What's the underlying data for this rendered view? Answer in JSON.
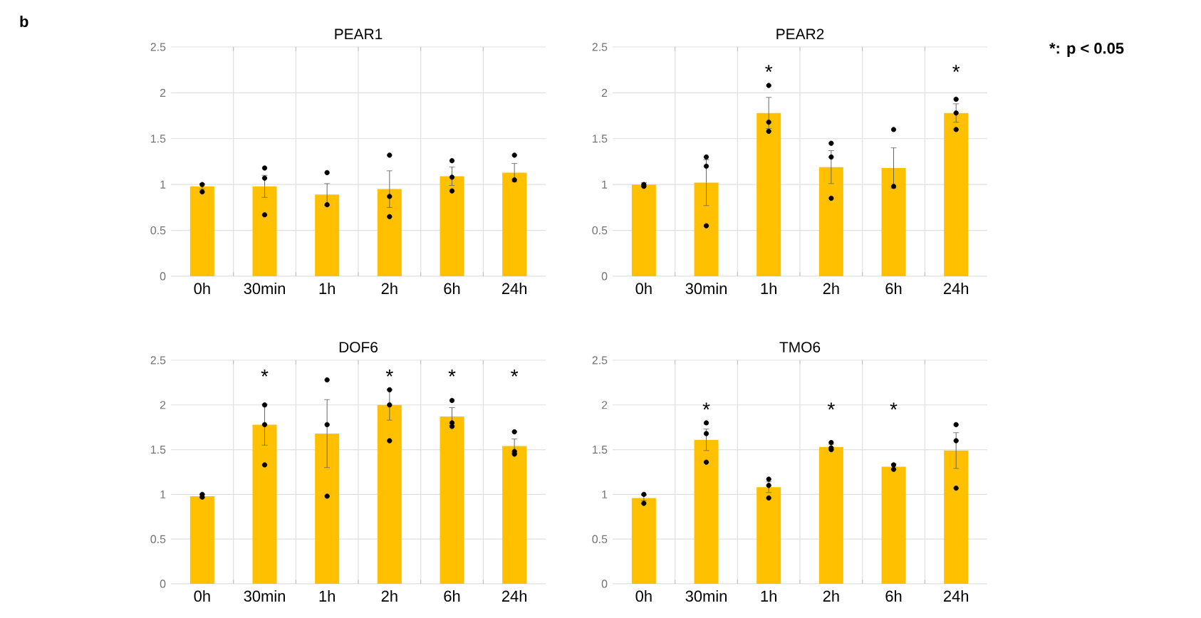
{
  "chart_data": [
    {
      "type": "bar",
      "title": "PEAR1",
      "categories": [
        "0h",
        "30min",
        "1h",
        "2h",
        "6h",
        "24h"
      ],
      "ylim": [
        0,
        2.5
      ],
      "yticks": [
        0,
        0.5,
        1,
        1.5,
        2,
        2.5
      ],
      "grid": true,
      "series": [
        {
          "color": "#ffc000",
          "values": [
            0.98,
            0.98,
            0.89,
            0.95,
            1.09,
            1.13
          ],
          "errors": [
            0.03,
            0.12,
            0.12,
            0.2,
            0.1,
            0.1
          ]
        },
        {
          "type": "scatter",
          "color": "#000000",
          "marker": "circle",
          "x": [
            "0h",
            "0h",
            "30min",
            "30min",
            "30min",
            "1h",
            "1h",
            "2h",
            "2h",
            "2h",
            "6h",
            "6h",
            "6h",
            "24h",
            "24h"
          ],
          "values": [
            1.0,
            0.92,
            1.18,
            1.07,
            0.67,
            1.13,
            0.78,
            1.32,
            0.87,
            0.65,
            1.26,
            1.08,
            0.93,
            1.32,
            1.05
          ]
        }
      ],
      "annotations": [
        "b"
      ]
    },
    {
      "type": "bar",
      "title": "PEAR2",
      "categories": [
        "0h",
        "30min",
        "1h",
        "2h",
        "6h",
        "24h"
      ],
      "ylim": [
        0,
        2.5
      ],
      "yticks": [
        0,
        0.5,
        1,
        1.5,
        2,
        2.5
      ],
      "grid": true,
      "series": [
        {
          "color": "#ffc000",
          "values": [
            1.0,
            1.02,
            1.78,
            1.19,
            1.18,
            1.78
          ],
          "errors": [
            0.02,
            0.25,
            0.17,
            0.18,
            0.22,
            0.1
          ]
        },
        {
          "type": "scatter",
          "color": "#000000",
          "marker": "circle",
          "x": [
            "0h",
            "0h",
            "30min",
            "30min",
            "30min",
            "1h",
            "1h",
            "1h",
            "2h",
            "2h",
            "2h",
            "6h",
            "6h",
            "24h",
            "24h",
            "24h"
          ],
          "values": [
            1.0,
            0.98,
            1.3,
            1.2,
            0.55,
            2.08,
            1.68,
            1.58,
            1.45,
            1.3,
            0.85,
            1.6,
            0.98,
            1.93,
            1.78,
            1.6
          ]
        }
      ],
      "annotations": [
        {
          "text": "*",
          "x": "1h",
          "y": 1.78
        },
        {
          "text": "*",
          "x": "24h",
          "y": 1.78
        },
        "*: p < 0.05"
      ]
    },
    {
      "type": "bar",
      "title": "DOF6",
      "categories": [
        "0h",
        "30min",
        "1h",
        "2h",
        "6h",
        "24h"
      ],
      "ylim": [
        0,
        2.5
      ],
      "yticks": [
        0,
        0.5,
        1,
        1.5,
        2,
        2.5
      ],
      "grid": true,
      "series": [
        {
          "color": "#ffc000",
          "values": [
            0.98,
            1.78,
            1.68,
            2.0,
            1.87,
            1.54
          ],
          "errors": [
            0.02,
            0.23,
            0.38,
            0.17,
            0.1,
            0.08
          ]
        },
        {
          "type": "scatter",
          "color": "#000000",
          "marker": "circle",
          "x": [
            "0h",
            "0h",
            "30min",
            "30min",
            "30min",
            "1h",
            "1h",
            "1h",
            "2h",
            "2h",
            "2h",
            "6h",
            "6h",
            "6h",
            "24h",
            "24h",
            "24h"
          ],
          "values": [
            1.0,
            0.97,
            2.0,
            1.78,
            1.33,
            2.28,
            1.78,
            0.98,
            2.17,
            2.0,
            1.6,
            2.05,
            1.8,
            1.76,
            1.7,
            1.48,
            1.45
          ]
        }
      ],
      "annotations": [
        {
          "text": "*",
          "x": "30min",
          "y": 1.78
        },
        {
          "text": "*",
          "x": "2h",
          "y": 2.0
        },
        {
          "text": "*",
          "x": "6h",
          "y": 1.87
        },
        {
          "text": "*",
          "x": "24h",
          "y": 1.7
        }
      ]
    },
    {
      "type": "bar",
      "title": "TMO6",
      "categories": [
        "0h",
        "30min",
        "1h",
        "2h",
        "6h",
        "24h"
      ],
      "ylim": [
        0,
        2.5
      ],
      "yticks": [
        0,
        0.5,
        1,
        1.5,
        2,
        2.5
      ],
      "grid": true,
      "series": [
        {
          "color": "#ffc000",
          "values": [
            0.96,
            1.61,
            1.08,
            1.53,
            1.31,
            1.49
          ],
          "errors": [
            0.03,
            0.12,
            0.06,
            0.03,
            0.03,
            0.2
          ]
        },
        {
          "type": "scatter",
          "color": "#000000",
          "marker": "circle",
          "x": [
            "0h",
            "0h",
            "30min",
            "30min",
            "30min",
            "1h",
            "1h",
            "1h",
            "2h",
            "2h",
            "2h",
            "6h",
            "6h",
            "24h",
            "24h",
            "24h"
          ],
          "values": [
            1.0,
            0.9,
            1.8,
            1.68,
            1.36,
            1.17,
            1.1,
            0.96,
            1.58,
            1.52,
            1.5,
            1.33,
            1.28,
            1.78,
            1.6,
            1.07
          ]
        }
      ],
      "annotations": [
        {
          "text": "*",
          "x": "30min",
          "y": 1.61
        },
        {
          "text": "*",
          "x": "2h",
          "y": 1.53
        },
        {
          "text": "*",
          "x": "6h",
          "y": 1.31
        }
      ]
    }
  ]
}
